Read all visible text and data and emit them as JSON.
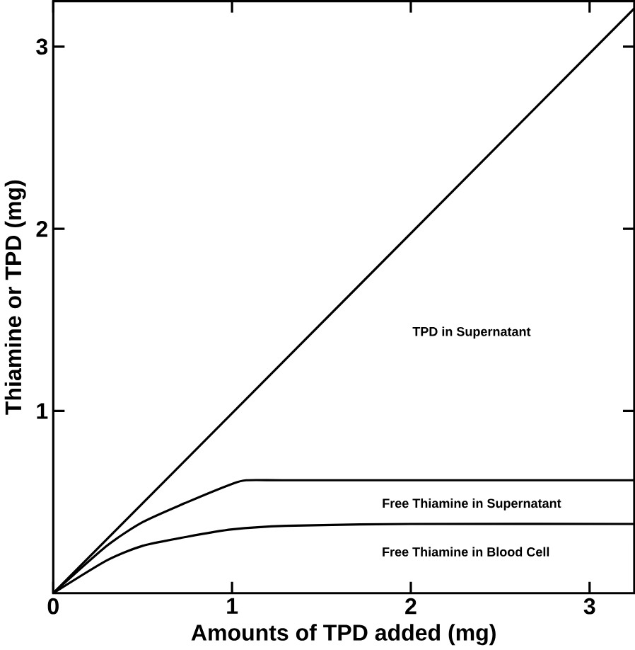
{
  "chart_data": {
    "type": "line",
    "xlabel": "Amounts of TPD added (mg)",
    "ylabel": "Thiamine or TPD (mg)",
    "xlim": [
      0,
      3.25
    ],
    "ylim": [
      0,
      3.25
    ],
    "xticks": [
      0,
      1,
      2,
      3
    ],
    "yticks": [
      1,
      2,
      3
    ],
    "grid": false,
    "marker": "none",
    "line_style": "solid",
    "series": [
      {
        "color": "#000000",
        "x": [
          0,
          3.25
        ],
        "values": [
          0,
          3.21
        ]
      },
      {
        "color": "#000000",
        "x": [
          0,
          0.3,
          0.5,
          0.75,
          1,
          1.08,
          1.3,
          2,
          3.25
        ],
        "values": [
          0,
          0.26,
          0.39,
          0.5,
          0.6,
          0.62,
          0.62,
          0.62,
          0.62
        ]
      },
      {
        "color": "#000000",
        "x": [
          0,
          0.3,
          0.5,
          0.75,
          1,
          1.3,
          2,
          3.25
        ],
        "values": [
          0,
          0.18,
          0.26,
          0.31,
          0.35,
          0.37,
          0.38,
          0.38
        ]
      }
    ],
    "annotations": [
      "TPD in Supernatant",
      "Free Thiamine in Supernatant",
      "Free Thiamine in Blood Cell"
    ]
  }
}
